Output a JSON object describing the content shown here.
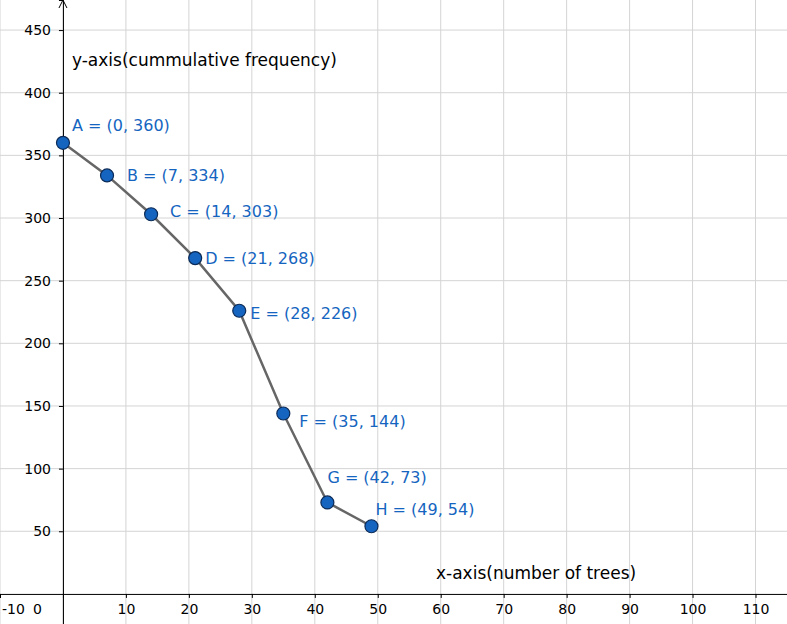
{
  "chart_data": {
    "type": "line",
    "x_label": "x-axis(number of trees)",
    "y_label": "y-axis(cummulative frequency)",
    "x": [
      0,
      7,
      14,
      21,
      28,
      35,
      42,
      49
    ],
    "values": [
      360,
      334,
      303,
      268,
      226,
      144,
      73,
      54
    ],
    "point_labels": [
      "A = (0, 360)",
      "B = (7, 334)",
      "C = (14, 303)",
      "D = (21, 268)",
      "E = (28, 226)",
      "F = (35, 144)",
      "G = (42, 73)",
      "H = (49, 54)"
    ],
    "color": "#1565c0",
    "marker": "circle",
    "grid": true,
    "xlim": [
      -10,
      115
    ],
    "ylim": [
      -24,
      474
    ],
    "xticks": [
      -10,
      0,
      10,
      20,
      30,
      40,
      50,
      60,
      70,
      80,
      90,
      100,
      110
    ],
    "yticks": [
      50,
      100,
      150,
      200,
      250,
      300,
      350,
      400,
      450
    ]
  }
}
